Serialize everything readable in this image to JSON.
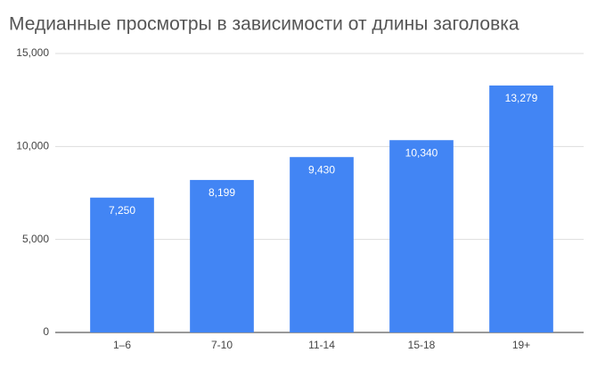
{
  "chart_data": {
    "type": "bar",
    "title": "Медианные просмотры в зависимости от длины заголовка",
    "categories": [
      "1–6",
      "7-10",
      "11-14",
      "15-18",
      "19+"
    ],
    "values": [
      7250,
      8199,
      9430,
      10340,
      13279
    ],
    "value_labels": [
      "7,250",
      "8,199",
      "9,430",
      "10,340",
      "13,279"
    ],
    "color": "#4285f4",
    "ylim": [
      0,
      15000
    ],
    "yticks": [
      0,
      {
        "value": 5000,
        "label": "5,000"
      },
      {
        "value": 10000,
        "label": "10,000"
      },
      {
        "value": 15000,
        "label": "15,000"
      }
    ],
    "grid": true
  }
}
